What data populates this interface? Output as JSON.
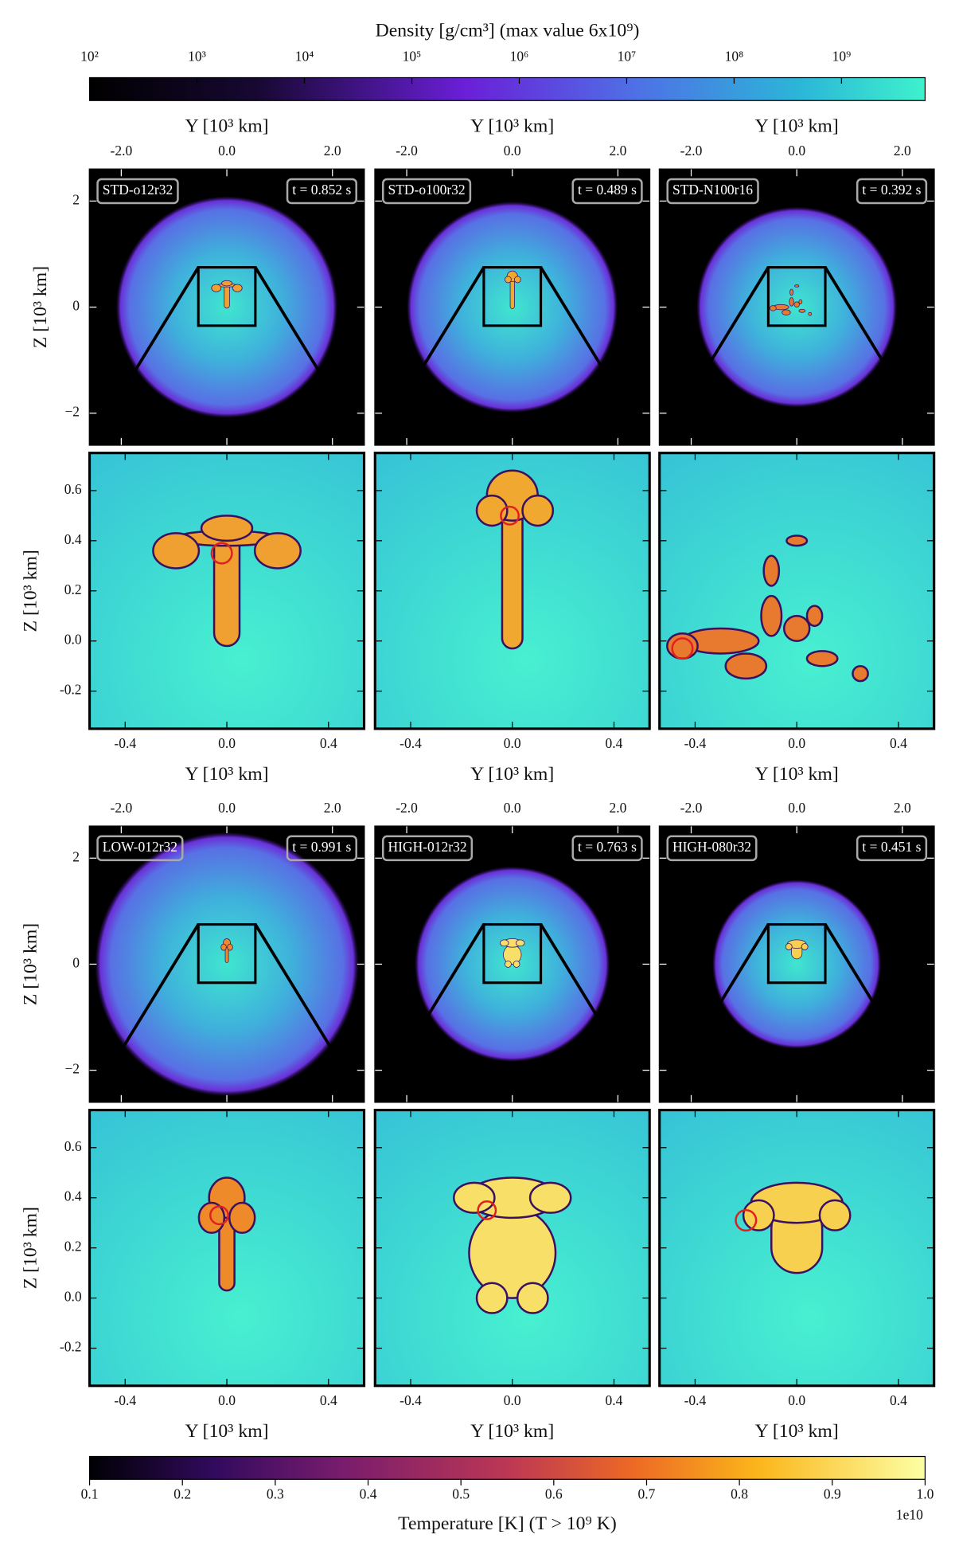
{
  "density_colorbar": {
    "label": "Density [g/cm³] (max value 6x10⁹)",
    "log": true,
    "lim": [
      100,
      6000000000
    ],
    "ticks": [
      {
        "value": 100,
        "label": "10²"
      },
      {
        "value": 1000,
        "label": "10³"
      },
      {
        "value": 10000,
        "label": "10⁴"
      },
      {
        "value": 100000,
        "label": "10⁵"
      },
      {
        "value": 1000000,
        "label": "10⁶"
      },
      {
        "value": 10000000,
        "label": "10⁷"
      },
      {
        "value": 100000000,
        "label": "10⁸"
      },
      {
        "value": 1000000000,
        "label": "10⁹"
      }
    ]
  },
  "temperature_colorbar": {
    "label": "Temperature [K] (T > 10⁹ K)",
    "offset_label": "1e10",
    "lim": [
      0.1,
      1
    ],
    "ticks": [
      0.1,
      0.2,
      0.3,
      0.4,
      0.5,
      0.6,
      0.7,
      0.8,
      0.9,
      {
        "value": 1,
        "label": "1.0"
      }
    ]
  },
  "axes": {
    "x_label": "Y [10³ km]",
    "y_label": "Z [10³ km]",
    "overview": {
      "xlim": [
        -2.6,
        2.6
      ],
      "ylim": [
        -2.6,
        2.6
      ],
      "xticks": [
        {
          "value": -2,
          "label": "-2.0"
        },
        {
          "value": 0,
          "label": "0.0"
        },
        {
          "value": 2,
          "label": "2.0"
        }
      ],
      "yticks": [
        {
          "value": -2,
          "label": "−2"
        },
        0,
        2
      ]
    },
    "zoom": {
      "xlim": [
        -0.54,
        0.54
      ],
      "ylim": [
        -0.35,
        0.75
      ],
      "xticks": [
        -0.4,
        {
          "value": 0,
          "label": "0.0"
        },
        0.4
      ],
      "yticks": [
        -0.2,
        {
          "value": 0,
          "label": "0.0"
        },
        0.2,
        0.4,
        0.6
      ]
    }
  },
  "panels": [
    {
      "name": "STD-o12r32",
      "time": "t = 0.852 s"
    },
    {
      "name": "STD-o100r32",
      "time": "t = 0.489 s"
    },
    {
      "name": "STD-N100r16",
      "time": "t = 0.392 s"
    },
    {
      "name": "LOW-012r32",
      "time": "t = 0.991 s"
    },
    {
      "name": "HIGH-012r32",
      "time": "t = 0.763 s"
    },
    {
      "name": "HIGH-080r32",
      "time": "t = 0.451 s"
    }
  ]
}
